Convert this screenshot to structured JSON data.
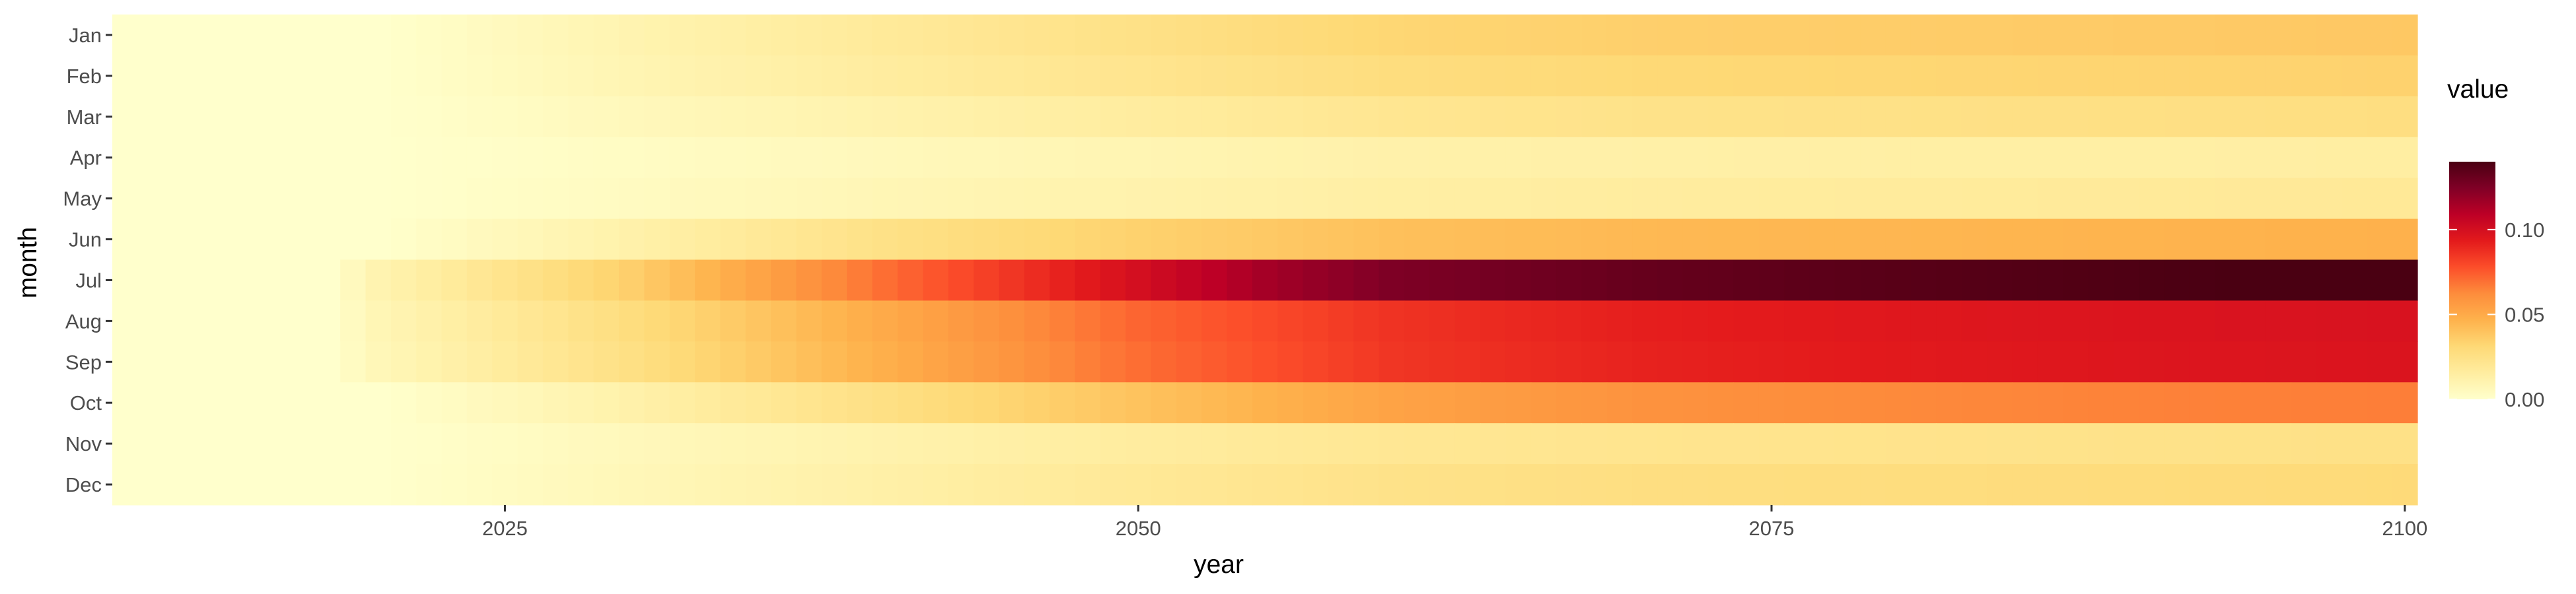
{
  "chart_data": {
    "type": "heatmap",
    "title": "",
    "xlabel": "year",
    "ylabel": "month",
    "x_ticks": [
      2025,
      2050,
      2075,
      2100
    ],
    "xlim": [
      2010,
      2100
    ],
    "y_categories": [
      "Jan",
      "Feb",
      "Mar",
      "Apr",
      "May",
      "Jun",
      "Jul",
      "Aug",
      "Sep",
      "Oct",
      "Nov",
      "Dec"
    ],
    "legend": {
      "title": "value",
      "position": "right",
      "ticks": [
        "0.00",
        "0.05",
        "0.10"
      ],
      "range": [
        0,
        0.14
      ],
      "colors": [
        "#FFFFCC",
        "#FFEDA0",
        "#FED976",
        "#FEB24C",
        "#FD8D3C",
        "#FC4E2A",
        "#E31A1C",
        "#BD0026",
        "#800026",
        "#4A0012"
      ]
    },
    "series": [
      {
        "name": "Jan",
        "years": [
          2010,
          2020,
          2030,
          2040,
          2050,
          2060,
          2070,
          2080,
          2090,
          2100
        ],
        "values": [
          0.0,
          0.0,
          0.01,
          0.018,
          0.025,
          0.032,
          0.035,
          0.036,
          0.037,
          0.038
        ]
      },
      {
        "name": "Feb",
        "years": [
          2010,
          2020,
          2030,
          2040,
          2050,
          2060,
          2070,
          2080,
          2090,
          2100
        ],
        "values": [
          0.0,
          0.0,
          0.009,
          0.016,
          0.022,
          0.028,
          0.031,
          0.032,
          0.033,
          0.034
        ]
      },
      {
        "name": "Mar",
        "years": [
          2010,
          2020,
          2030,
          2040,
          2050,
          2060,
          2070,
          2080,
          2090,
          2100
        ],
        "values": [
          0.0,
          0.0,
          0.006,
          0.011,
          0.016,
          0.021,
          0.024,
          0.025,
          0.026,
          0.027
        ]
      },
      {
        "name": "Apr",
        "years": [
          2010,
          2020,
          2030,
          2040,
          2050,
          2060,
          2070,
          2080,
          2090,
          2100
        ],
        "values": [
          0.0,
          0.0,
          0.003,
          0.006,
          0.009,
          0.012,
          0.013,
          0.014,
          0.014,
          0.015
        ]
      },
      {
        "name": "May",
        "years": [
          2010,
          2020,
          2030,
          2040,
          2050,
          2060,
          2070,
          2080,
          2090,
          2100
        ],
        "values": [
          0.0,
          0.0,
          0.004,
          0.008,
          0.011,
          0.014,
          0.016,
          0.017,
          0.018,
          0.019
        ]
      },
      {
        "name": "Jun",
        "years": [
          2010,
          2020,
          2030,
          2040,
          2050,
          2060,
          2070,
          2080,
          2090,
          2100
        ],
        "values": [
          0.0,
          0.0,
          0.012,
          0.025,
          0.034,
          0.041,
          0.044,
          0.045,
          0.046,
          0.047
        ]
      },
      {
        "name": "Jul",
        "years": [
          2010,
          2018,
          2020,
          2030,
          2040,
          2050,
          2055,
          2060,
          2070,
          2080,
          2090,
          2100
        ],
        "values": [
          0.0,
          0.0,
          0.01,
          0.035,
          0.07,
          0.1,
          0.115,
          0.125,
          0.132,
          0.136,
          0.139,
          0.142
        ]
      },
      {
        "name": "Aug",
        "years": [
          2010,
          2018,
          2020,
          2030,
          2040,
          2050,
          2060,
          2070,
          2080,
          2090,
          2100
        ],
        "values": [
          0.0,
          0.0,
          0.008,
          0.028,
          0.05,
          0.072,
          0.086,
          0.092,
          0.095,
          0.097,
          0.098
        ]
      },
      {
        "name": "Sep",
        "years": [
          2010,
          2018,
          2020,
          2030,
          2040,
          2050,
          2060,
          2070,
          2080,
          2090,
          2100
        ],
        "values": [
          0.0,
          0.0,
          0.007,
          0.026,
          0.048,
          0.07,
          0.085,
          0.091,
          0.094,
          0.096,
          0.097
        ]
      },
      {
        "name": "Oct",
        "years": [
          2010,
          2020,
          2030,
          2040,
          2050,
          2060,
          2070,
          2080,
          2090,
          2100
        ],
        "values": [
          0.0,
          0.0,
          0.012,
          0.026,
          0.04,
          0.053,
          0.06,
          0.063,
          0.065,
          0.066
        ]
      },
      {
        "name": "Nov",
        "years": [
          2010,
          2020,
          2030,
          2040,
          2050,
          2060,
          2070,
          2080,
          2090,
          2100
        ],
        "values": [
          0.0,
          0.0,
          0.006,
          0.011,
          0.016,
          0.02,
          0.022,
          0.023,
          0.024,
          0.025
        ]
      },
      {
        "name": "Dec",
        "years": [
          2010,
          2020,
          2030,
          2040,
          2050,
          2060,
          2070,
          2080,
          2090,
          2100
        ],
        "values": [
          0.0,
          0.0,
          0.007,
          0.013,
          0.019,
          0.024,
          0.027,
          0.028,
          0.029,
          0.03
        ]
      }
    ]
  }
}
